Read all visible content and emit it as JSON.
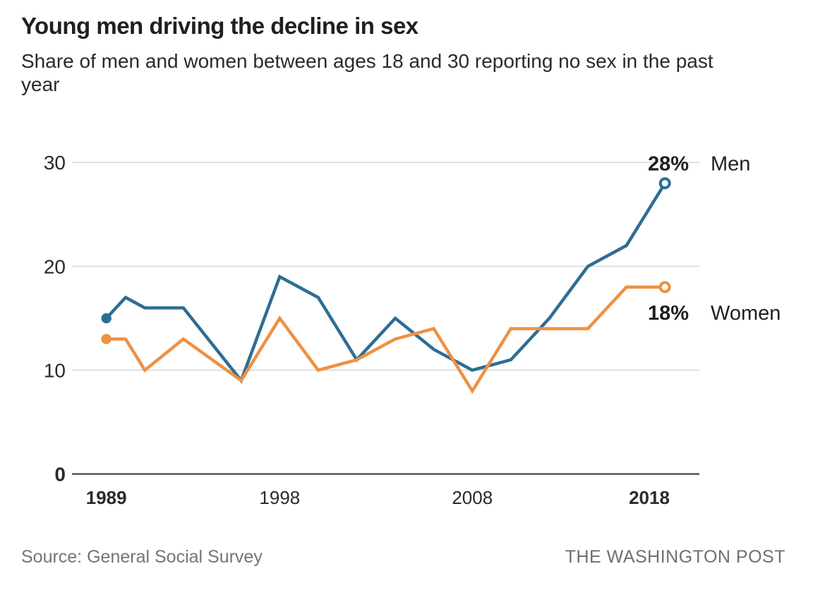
{
  "header": {
    "title": "Young men driving the decline in sex",
    "subtitle": "Share of men and women between ages 18 and 30 reporting no sex in the past year"
  },
  "chart_data": {
    "type": "line",
    "title": "Young men driving the decline in sex",
    "subtitle": "Share of men and women between ages 18 and 30 reporting no sex in the past year",
    "x": [
      1989,
      1990,
      1991,
      1993,
      1996,
      1998,
      2000,
      2002,
      2004,
      2006,
      2008,
      2010,
      2012,
      2014,
      2016,
      2018
    ],
    "series": [
      {
        "name": "Men",
        "color": "#2e6d93",
        "values": [
          15,
          17,
          16,
          16,
          9,
          19,
          17,
          11,
          15,
          12,
          10,
          11,
          15,
          20,
          22,
          28
        ],
        "end_label": "28%",
        "start_marker": "filled-dot",
        "end_marker": "open-dot"
      },
      {
        "name": "Women",
        "color": "#ee9143",
        "values": [
          13,
          13,
          10,
          13,
          9,
          15,
          10,
          11,
          13,
          14,
          8,
          14,
          14,
          14,
          18,
          18
        ],
        "end_label": "18%",
        "start_marker": "filled-dot",
        "end_marker": "open-dot"
      }
    ],
    "xlabel": "",
    "ylabel": "",
    "ylim": [
      0,
      30
    ],
    "yticks": [
      {
        "value": 0,
        "label": "0",
        "emphasis": true
      },
      {
        "value": 10,
        "label": "10",
        "emphasis": false
      },
      {
        "value": 20,
        "label": "20",
        "emphasis": false
      },
      {
        "value": 30,
        "label": "30",
        "emphasis": false
      }
    ],
    "xticks": [
      {
        "value": 1989,
        "label": "1989",
        "emphasis": true
      },
      {
        "value": 1998,
        "label": "1998",
        "emphasis": false
      },
      {
        "value": 2008,
        "label": "2008",
        "emphasis": false
      },
      {
        "value": 2018,
        "label": "2018",
        "emphasis": true
      }
    ],
    "grid": "horizontal",
    "legend_position": "right"
  },
  "footer": {
    "source": "Source: General Social Survey",
    "credit": "THE WASHINGTON POST"
  },
  "colors": {
    "men": "#2e6d93",
    "women": "#ee9143",
    "grid": "#d9d9d9",
    "axis": "#4d4d4d",
    "text_dark": "#1f1f1f",
    "text_muted": "#757575"
  }
}
